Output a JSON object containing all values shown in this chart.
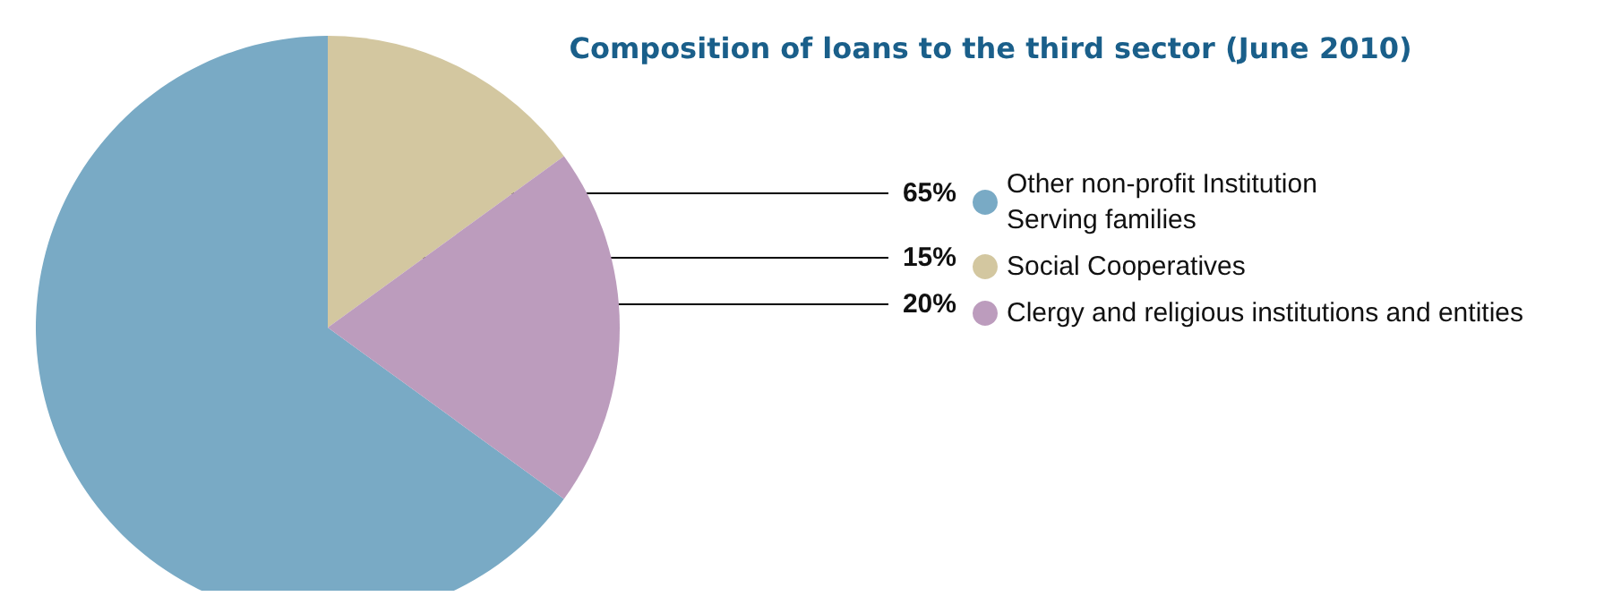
{
  "chart_data": {
    "type": "pie",
    "title": "Composition of loans to the third sector (June 2010)",
    "categories": [
      "Other non-profit Institution\nServing families",
      "Social Cooperatives",
      "Clergy and religious institutions and entities"
    ],
    "values": [
      65,
      15,
      20
    ],
    "value_labels": [
      "65%",
      "15%",
      "20%"
    ],
    "colors": [
      "#79aac5",
      "#d3c7a0",
      "#bc9cbd"
    ],
    "legend": "right"
  }
}
